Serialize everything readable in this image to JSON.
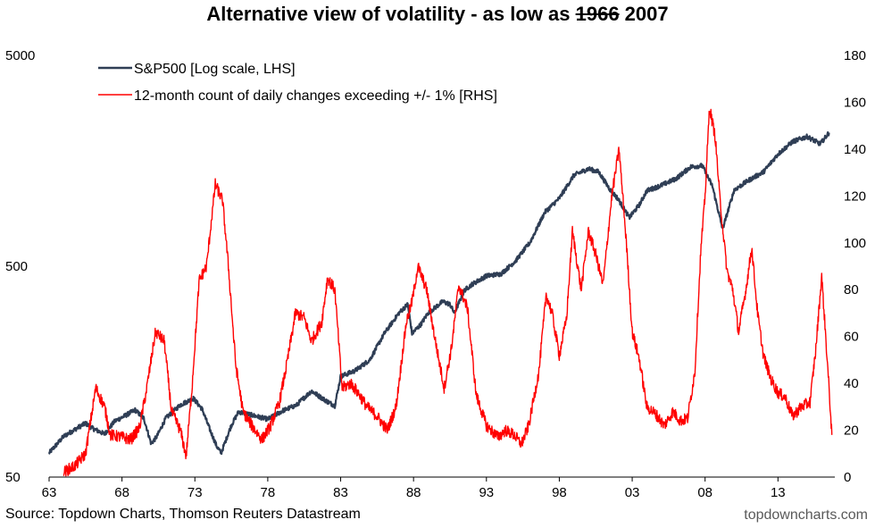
{
  "title": {
    "prefix": "Alternative view of volatility - as low as ",
    "struck": "1966",
    "suffix": " 2007"
  },
  "source": "Source: Topdown Charts, Thomson Reuters Datastream",
  "brand": "topdowncharts.com",
  "colors": {
    "sp500": "#2f3e55",
    "count": "#ff0000"
  },
  "chart_data": {
    "type": "line",
    "title": "Alternative view of volatility - as low as 1966 2007",
    "xlim": [
      1963,
      2016.9
    ],
    "x_ticks": [
      1963,
      1968,
      1973,
      1978,
      1983,
      1988,
      1993,
      1998,
      2003,
      2008,
      2013
    ],
    "x_tick_labels": [
      "63",
      "68",
      "73",
      "78",
      "83",
      "88",
      "93",
      "98",
      "03",
      "08",
      "13"
    ],
    "y_left": {
      "scale": "log",
      "lim": [
        50,
        5000
      ],
      "ticks": [
        50,
        500,
        5000
      ],
      "tick_labels": [
        "50",
        "500",
        "5000"
      ]
    },
    "y_right": {
      "scale": "linear",
      "lim": [
        0,
        180
      ],
      "ticks": [
        0,
        20,
        40,
        60,
        80,
        100,
        120,
        140,
        160,
        180
      ],
      "tick_labels": [
        "0",
        "20",
        "40",
        "60",
        "80",
        "100",
        "120",
        "140",
        "160",
        "180"
      ]
    },
    "legend": {
      "placement": "top-left"
    },
    "grid": false,
    "series": [
      {
        "name": "S&P500 [Log scale, LHS]",
        "axis": "left",
        "x": [
          1963.0,
          1964.0,
          1965.0,
          1965.5,
          1966.0,
          1966.8,
          1967.5,
          1968.0,
          1968.9,
          1969.5,
          1970.0,
          1970.4,
          1971.0,
          1972.0,
          1972.9,
          1973.5,
          1974.0,
          1974.5,
          1974.8,
          1975.5,
          1976.0,
          1977.0,
          1978.0,
          1979.0,
          1980.0,
          1980.2,
          1981.0,
          1982.0,
          1982.6,
          1983.0,
          1984.0,
          1985.0,
          1986.0,
          1987.0,
          1987.6,
          1987.9,
          1988.5,
          1989.0,
          1990.0,
          1990.5,
          1990.8,
          1991.5,
          1992.0,
          1993.0,
          1994.0,
          1995.0,
          1996.0,
          1997.0,
          1998.0,
          1999.0,
          2000.0,
          2000.7,
          2001.5,
          2002.0,
          2002.8,
          2003.5,
          2004.0,
          2005.0,
          2006.0,
          2007.0,
          2007.8,
          2008.5,
          2009.2,
          2010.0,
          2011.0,
          2012.0,
          2013.0,
          2014.0,
          2015.0,
          2015.9,
          2016.5
        ],
        "values": [
          65,
          78,
          86,
          90,
          85,
          80,
          92,
          96,
          104,
          95,
          72,
          78,
          95,
          110,
          118,
          105,
          85,
          70,
          65,
          88,
          102,
          98,
          94,
          103,
          110,
          114,
          128,
          115,
          109,
          150,
          160,
          180,
          240,
          300,
          330,
          240,
          265,
          300,
          340,
          330,
          300,
          385,
          410,
          450,
          460,
          530,
          650,
          900,
          1050,
          1350,
          1450,
          1400,
          1150,
          1050,
          850,
          980,
          1140,
          1210,
          1300,
          1480,
          1500,
          1200,
          750,
          1150,
          1280,
          1400,
          1700,
          1950,
          2060,
          1900,
          2150
        ]
      },
      {
        "name": "12-month count of daily changes exceeding +/- 1% [RHS]",
        "axis": "right",
        "x": [
          1964.0,
          1964.8,
          1965.5,
          1966.2,
          1966.8,
          1967.2,
          1968.0,
          1968.6,
          1969.2,
          1969.7,
          1970.3,
          1970.9,
          1971.4,
          1972.0,
          1972.4,
          1972.8,
          1973.3,
          1973.8,
          1974.4,
          1974.9,
          1975.3,
          1975.8,
          1976.3,
          1976.9,
          1977.6,
          1978.2,
          1978.8,
          1979.3,
          1979.9,
          1980.5,
          1981.0,
          1981.7,
          1982.1,
          1982.6,
          1983.1,
          1983.7,
          1984.3,
          1984.8,
          1985.5,
          1986.2,
          1986.8,
          1987.5,
          1987.9,
          1988.3,
          1988.9,
          1989.5,
          1990.1,
          1990.6,
          1991.1,
          1991.7,
          1992.3,
          1993.0,
          1993.8,
          1994.3,
          1994.9,
          1995.4,
          1995.9,
          1996.6,
          1997.1,
          1997.5,
          1998.0,
          1998.5,
          1998.9,
          1999.5,
          2000.0,
          2000.5,
          2001.0,
          2001.6,
          2002.1,
          2002.6,
          2003.0,
          2003.5,
          2004.0,
          2004.6,
          2005.2,
          2005.8,
          2006.3,
          2006.8,
          2007.3,
          2007.7,
          2008.0,
          2008.3,
          2008.7,
          2009.0,
          2009.5,
          2009.9,
          2010.3,
          2010.8,
          2011.2,
          2011.6,
          2012.0,
          2012.5,
          2013.0,
          2013.5,
          2014.0,
          2014.6,
          2015.2,
          2015.6,
          2016.0,
          2016.4,
          2016.7
        ],
        "values": [
          2,
          5,
          10,
          38,
          30,
          18,
          17,
          16,
          21,
          38,
          62,
          58,
          28,
          20,
          9,
          38,
          84,
          90,
          125,
          118,
          90,
          48,
          28,
          22,
          16,
          22,
          32,
          48,
          70,
          68,
          58,
          66,
          85,
          80,
          38,
          40,
          35,
          30,
          26,
          20,
          30,
          66,
          75,
          90,
          80,
          58,
          38,
          55,
          82,
          72,
          35,
          22,
          17,
          20,
          18,
          14,
          22,
          45,
          78,
          70,
          52,
          68,
          105,
          80,
          105,
          95,
          82,
          120,
          140,
          100,
          62,
          50,
          30,
          27,
          22,
          28,
          24,
          25,
          45,
          96,
          120,
          158,
          145,
          120,
          88,
          80,
          62,
          80,
          98,
          70,
          52,
          42,
          36,
          34,
          26,
          30,
          32,
          55,
          86,
          48,
          18
        ]
      }
    ]
  }
}
